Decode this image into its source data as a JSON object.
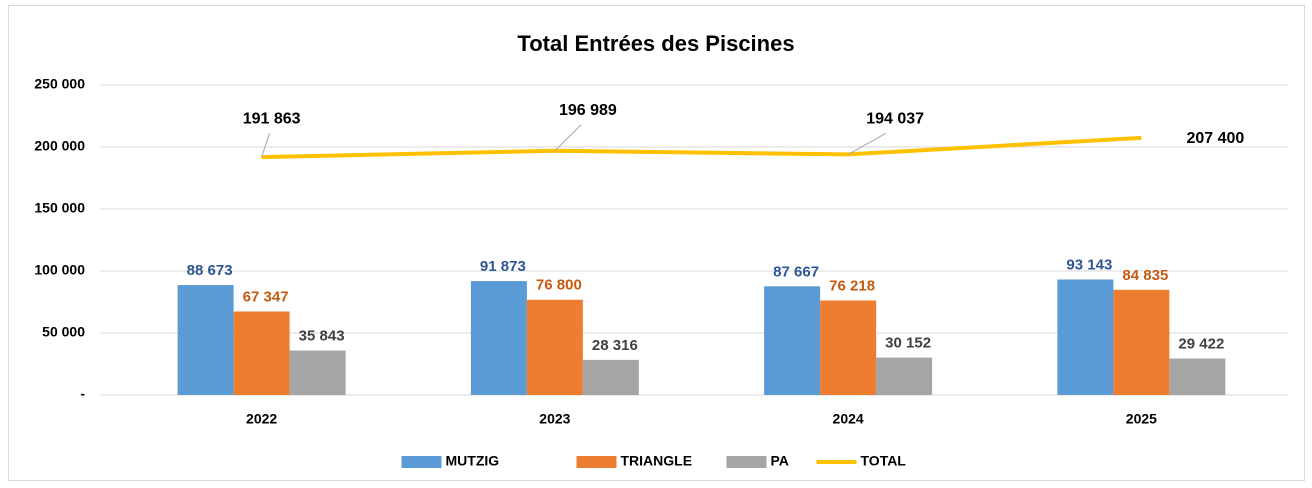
{
  "chart_data": {
    "type": "bar",
    "title": "Total Entrées des Piscines",
    "categories": [
      "2022",
      "2023",
      "2024",
      "2025"
    ],
    "series": [
      {
        "name": "MUTZIG",
        "color": "#5b9bd5",
        "label_color": "#2f5597",
        "values": [
          88673,
          91873,
          87667,
          93143
        ],
        "value_labels": [
          "88 673",
          "91 873",
          "87 667",
          "93 143"
        ]
      },
      {
        "name": "TRIANGLE",
        "color": "#ed7d31",
        "label_color": "#c55a11",
        "values": [
          67347,
          76800,
          76218,
          84835
        ],
        "value_labels": [
          "67 347",
          "76 800",
          "76 218",
          "84 835"
        ]
      },
      {
        "name": "PA",
        "color": "#a5a5a5",
        "label_color": "#404040",
        "values": [
          35843,
          28316,
          30152,
          29422
        ],
        "value_labels": [
          "35 843",
          "28 316",
          "30 152",
          "29 422"
        ]
      },
      {
        "name": "TOTAL",
        "type": "line",
        "color": "#ffc000",
        "label_color": "#000000",
        "values": [
          191863,
          196989,
          194037,
          207400
        ],
        "value_labels": [
          "191 863",
          "196 989",
          "194 037",
          "207 400"
        ]
      }
    ],
    "ylim": [
      0,
      250000
    ],
    "yticks": [
      {
        "value": 0,
        "label": "-"
      },
      {
        "value": 50000,
        "label": "50 000"
      },
      {
        "value": 100000,
        "label": "100 000"
      },
      {
        "value": 150000,
        "label": "150 000"
      },
      {
        "value": 200000,
        "label": "200 000"
      },
      {
        "value": 250000,
        "label": "250 000"
      }
    ],
    "grid": true,
    "legend": "bottom"
  }
}
